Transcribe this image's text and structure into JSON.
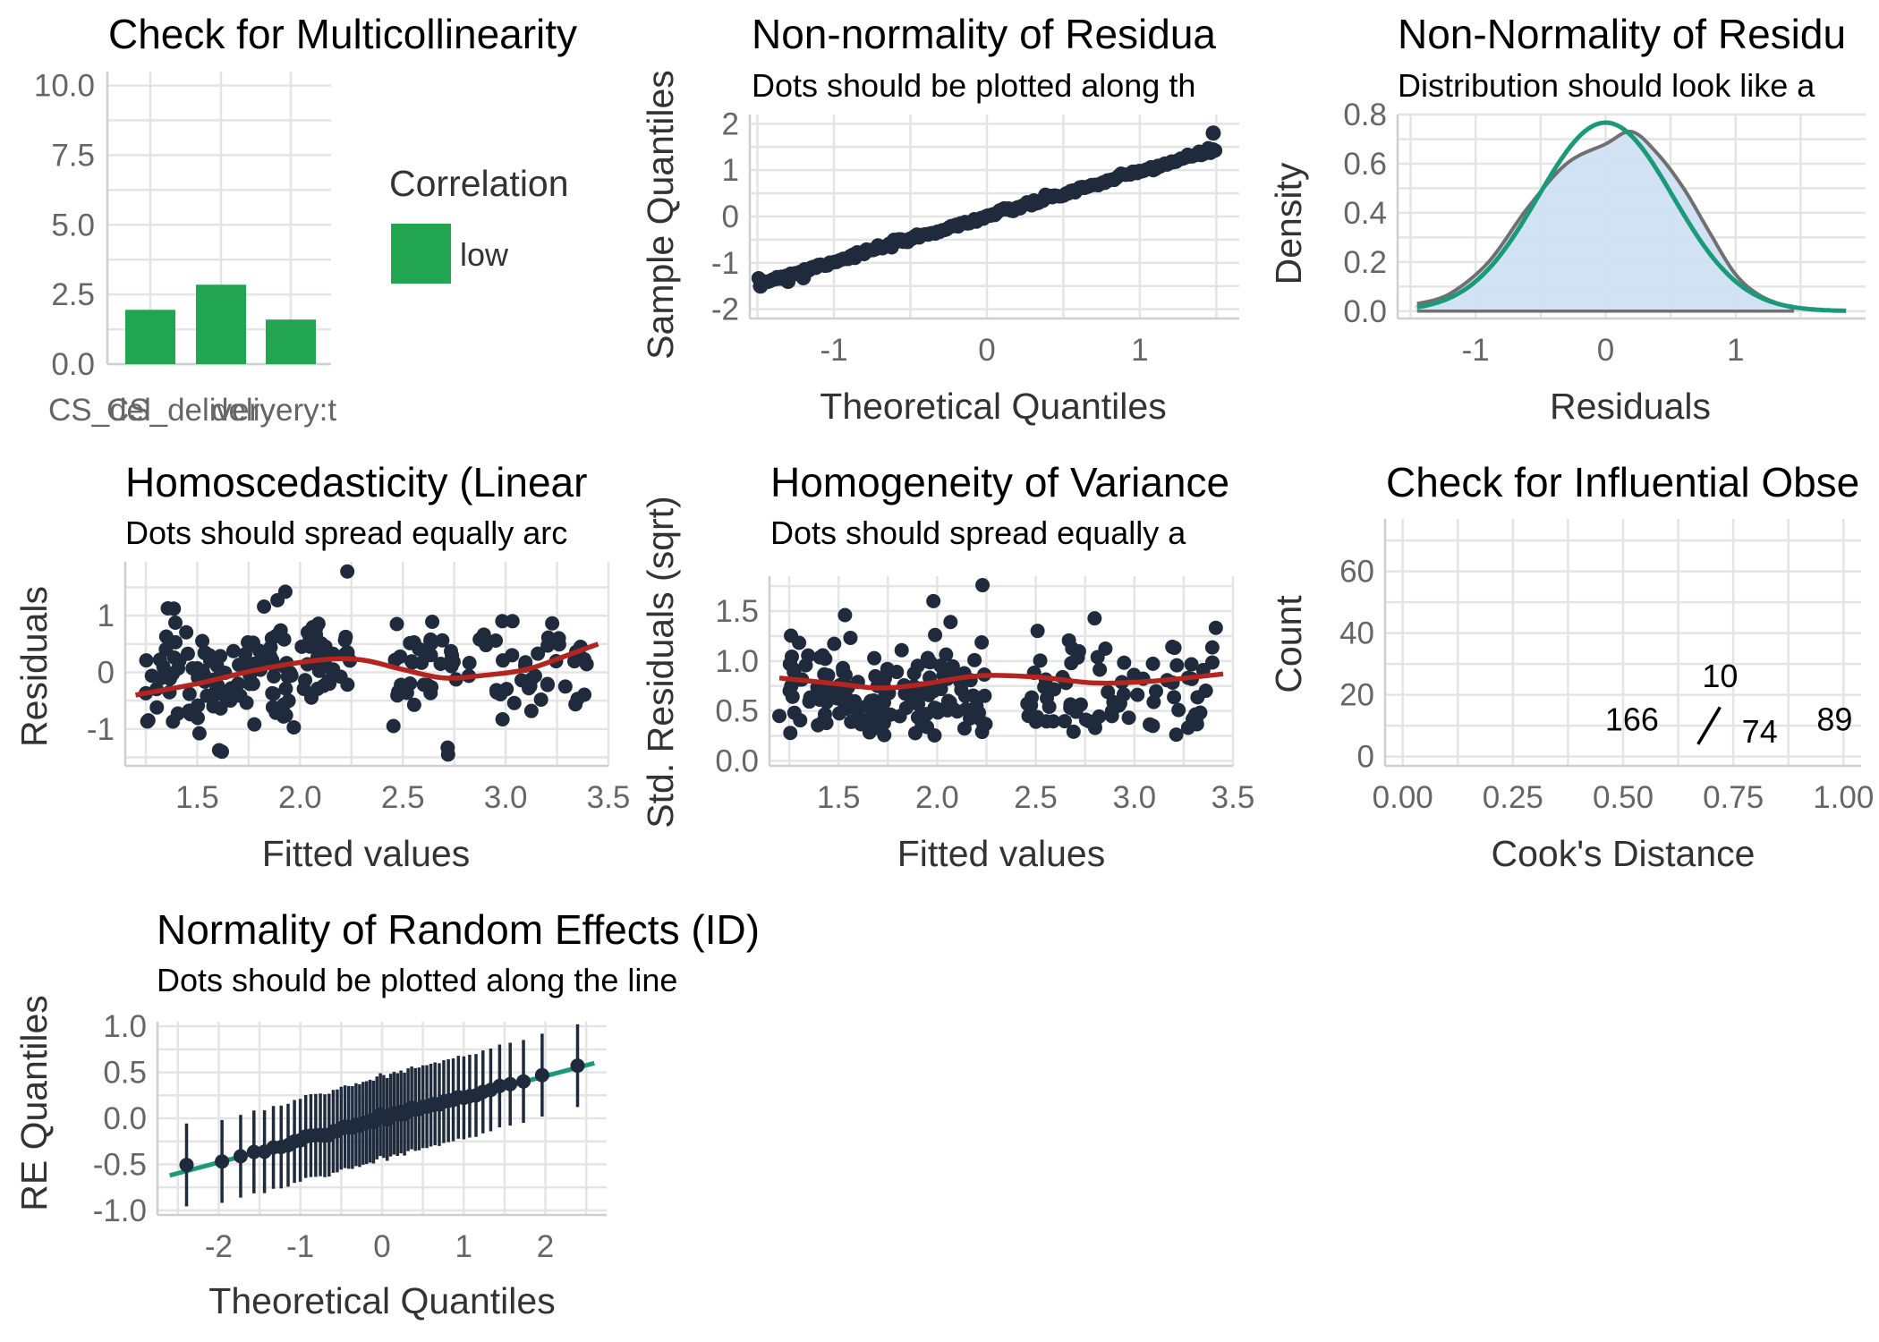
{
  "colors": {
    "point": "#1f2b3d",
    "ref_line": "#1a9a78",
    "smooth": "#b3251e",
    "bar": "#22a550",
    "density_fill": "#cde0f2",
    "density_line": "#707070"
  },
  "chart_data": [
    {
      "id": "vif",
      "type": "bar",
      "title": "Check for Multicollinearity",
      "categories": [
        "CS_del",
        "CS_delivery",
        "delivery:t"
      ],
      "values": [
        1.95,
        2.85,
        1.6
      ],
      "ylim": [
        0,
        10.5
      ],
      "yticks": [
        "0.0",
        "2.5",
        "5.0",
        "7.5",
        "10.0"
      ],
      "legend": {
        "title": "Correlation",
        "entries": [
          {
            "label": "low",
            "color": "#22a550"
          }
        ]
      }
    },
    {
      "id": "qq",
      "type": "scatter",
      "title": "Non-normality of Residua",
      "subtitle": "Dots should be plotted along th",
      "xlabel": "Theoretical Quantiles",
      "ylabel": "Sample Quantiles",
      "xlim": [
        -1.55,
        1.65
      ],
      "ylim": [
        -2.2,
        2.2
      ],
      "xticks": [
        "-1",
        "0",
        "1"
      ],
      "yticks": [
        "-2",
        "-1",
        "0",
        "1",
        "2"
      ],
      "line": [
        [
          -1.5,
          -1.45
        ],
        [
          1.5,
          1.45
        ]
      ],
      "n_points": 200,
      "range": [
        -1.5,
        1.5
      ],
      "extremes": [
        [
          1.48,
          1.8
        ],
        [
          -1.48,
          -1.5
        ],
        [
          -1.3,
          -1.4
        ],
        [
          -1.2,
          -1.32
        ]
      ]
    },
    {
      "id": "density",
      "type": "area",
      "title": "Non-Normality of Residu",
      "subtitle": "Distribution should look like a",
      "xlabel": "Residuals",
      "ylabel": "Density",
      "xlim": [
        -1.6,
        2.0
      ],
      "ylim": [
        -0.03,
        0.8
      ],
      "xticks": [
        "-1",
        "0",
        "1"
      ],
      "yticks": [
        "0.0",
        "0.2",
        "0.4",
        "0.6",
        "0.8"
      ],
      "normal": {
        "mean": 0.0,
        "sd": 0.52
      },
      "empirical": [
        [
          -1.45,
          0.03
        ],
        [
          -1.2,
          0.07
        ],
        [
          -0.9,
          0.2
        ],
        [
          -0.6,
          0.42
        ],
        [
          -0.3,
          0.6
        ],
        [
          0.0,
          0.68
        ],
        [
          0.2,
          0.73
        ],
        [
          0.4,
          0.64
        ],
        [
          0.6,
          0.5
        ],
        [
          0.8,
          0.32
        ],
        [
          1.0,
          0.15
        ],
        [
          1.2,
          0.06
        ],
        [
          1.45,
          0.01
        ]
      ]
    },
    {
      "id": "homosced",
      "type": "scatter",
      "title": "Homoscedasticity (Linear",
      "subtitle": "Dots should spread equally arc",
      "xlabel": "Fitted values",
      "ylabel": "Residuals",
      "xlim": [
        1.15,
        3.5
      ],
      "ylim": [
        -1.65,
        1.95
      ],
      "xticks": [
        "1.5",
        "2.0",
        "2.5",
        "3.0",
        "3.5"
      ],
      "yticks": [
        "-1",
        "0",
        "1"
      ],
      "smooth": [
        [
          1.2,
          -0.4
        ],
        [
          1.5,
          -0.2
        ],
        [
          1.8,
          0.05
        ],
        [
          2.1,
          0.22
        ],
        [
          2.3,
          0.22
        ],
        [
          2.5,
          0.05
        ],
        [
          2.7,
          -0.1
        ],
        [
          2.9,
          -0.05
        ],
        [
          3.1,
          0.05
        ],
        [
          3.3,
          0.3
        ],
        [
          3.45,
          0.5
        ]
      ]
    },
    {
      "id": "homogeneity",
      "type": "scatter",
      "title": "Homogeneity of Variance",
      "subtitle": "Dots should spread equally a",
      "xlabel": "Fitted values",
      "ylabel": "Std. Residuals (sqrt)",
      "xlim": [
        1.15,
        3.5
      ],
      "ylim": [
        -0.05,
        1.85
      ],
      "xticks": [
        "1.5",
        "2.0",
        "2.5",
        "3.0",
        "3.5"
      ],
      "yticks": [
        "0.0",
        "0.5",
        "1.0",
        "1.5"
      ],
      "smooth": [
        [
          1.2,
          0.83
        ],
        [
          1.5,
          0.77
        ],
        [
          1.7,
          0.73
        ],
        [
          1.9,
          0.76
        ],
        [
          2.2,
          0.85
        ],
        [
          2.5,
          0.84
        ],
        [
          2.8,
          0.78
        ],
        [
          3.1,
          0.8
        ],
        [
          3.45,
          0.87
        ]
      ]
    },
    {
      "id": "influential",
      "type": "scatter",
      "title": "Check for Influential Obse",
      "xlabel": "Cook's Distance",
      "ylabel": "Count",
      "xlim": [
        -0.04,
        1.04
      ],
      "ylim": [
        -3,
        77
      ],
      "xticks": [
        "0.00",
        "0.25",
        "0.50",
        "0.75",
        "1.00"
      ],
      "yticks": [
        "0",
        "20",
        "40",
        "60"
      ],
      "labels": [
        {
          "text": "10",
          "x": 0.72,
          "y": 26
        },
        {
          "text": "166",
          "x": 0.52,
          "y": 12
        },
        {
          "text": "74",
          "x": 0.81,
          "y": 8
        },
        {
          "text": "89",
          "x": 0.98,
          "y": 12
        }
      ]
    },
    {
      "id": "random-effects",
      "type": "scatter",
      "title": "Normality of Random Effects (ID)",
      "subtitle": "Dots should be plotted along the line",
      "xlabel": "Theoretical Quantiles",
      "ylabel": "RE Quantiles",
      "xlim": [
        -2.75,
        2.75
      ],
      "ylim": [
        -1.05,
        1.05
      ],
      "xticks": [
        "-2",
        "-1",
        "0",
        "1",
        "2"
      ],
      "yticks": [
        "-1.0",
        "-0.5",
        "0.0",
        "0.5",
        "1.0"
      ],
      "line": [
        [
          -2.6,
          -0.62
        ],
        [
          2.6,
          0.6
        ]
      ],
      "n_points": 60
    }
  ]
}
